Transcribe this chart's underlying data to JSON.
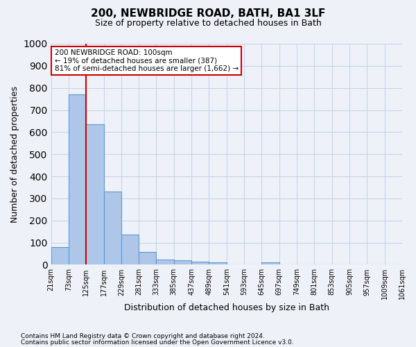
{
  "title1": "200, NEWBRIDGE ROAD, BATH, BA1 3LF",
  "title2": "Size of property relative to detached houses in Bath",
  "xlabel": "Distribution of detached houses by size in Bath",
  "ylabel": "Number of detached properties",
  "annotation_line1": "200 NEWBRIDGE ROAD: 100sqm",
  "annotation_line2": "← 19% of detached houses are smaller (387)",
  "annotation_line3": "81% of semi-detached houses are larger (1,662) →",
  "footer1": "Contains HM Land Registry data © Crown copyright and database right 2024.",
  "footer2": "Contains public sector information licensed under the Open Government Licence v3.0.",
  "bar_values": [
    80,
    770,
    635,
    330,
    135,
    58,
    23,
    20,
    13,
    10,
    0,
    0,
    10,
    0,
    0,
    0,
    0,
    0,
    0,
    0
  ],
  "bin_labels": [
    "21sqm",
    "73sqm",
    "125sqm",
    "177sqm",
    "229sqm",
    "281sqm",
    "333sqm",
    "385sqm",
    "437sqm",
    "489sqm",
    "541sqm",
    "593sqm",
    "645sqm",
    "697sqm",
    "749sqm",
    "801sqm",
    "853sqm",
    "905sqm",
    "957sqm",
    "1009sqm",
    "1061sqm"
  ],
  "bar_color": "#aec6e8",
  "bar_edge_color": "#5b9bd5",
  "vline_color": "#cc0000",
  "ylim": [
    0,
    1000
  ],
  "yticks": [
    0,
    100,
    200,
    300,
    400,
    500,
    600,
    700,
    800,
    900,
    1000
  ],
  "annotation_box_color": "#cc0000",
  "annotation_box_facecolor": "white",
  "grid_color": "#c8d4e8",
  "bg_color": "#eef2f8"
}
